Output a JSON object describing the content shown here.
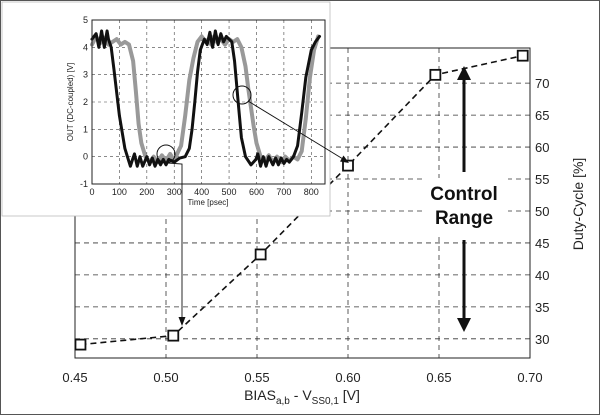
{
  "chart_data": [
    {
      "type": "line",
      "role": "main",
      "xlabel_main": "BIAS",
      "xlabel_sub1": "a,b",
      "xlabel_mid": " - V",
      "xlabel_sub2": "SS0,1",
      "xlabel_unit": " [V]",
      "ylabel": "Duty-Cycle [%]",
      "xlim": [
        0.45,
        0.7
      ],
      "ylim": [
        27,
        75.5
      ],
      "x_ticks": [
        "0.45",
        "0.50",
        "0.55",
        "0.60",
        "0.65",
        "0.70"
      ],
      "y_ticks": [
        "30",
        "35",
        "40",
        "45",
        "50",
        "55",
        "60",
        "65",
        "70"
      ],
      "grid": true,
      "series": [
        {
          "style": "dashed-square-markers",
          "x": [
            0.453,
            0.504,
            0.552,
            0.6,
            0.648,
            0.696
          ],
          "y": [
            29.1,
            30.5,
            43.2,
            57.1,
            71.3,
            74.3
          ]
        }
      ],
      "annotation": {
        "line1": "Control",
        "line2": "Range",
        "from_y": 71,
        "to_y": 30.7
      }
    },
    {
      "type": "line",
      "role": "inset",
      "xlabel": "Time [psec]",
      "ylabel": "OUT (DC-coupled) [V]",
      "xlim": [
        0,
        850
      ],
      "ylim": [
        -1,
        5
      ],
      "x_ticks": [
        "0",
        "100",
        "200",
        "300",
        "400",
        "500",
        "600",
        "700",
        "800"
      ],
      "y_ticks": [
        "-1",
        "0",
        "1",
        "2",
        "3",
        "4",
        "5"
      ],
      "grid": true,
      "series": [
        {
          "color": "#111111",
          "x": [
            0,
            15,
            25,
            35,
            45,
            55,
            60,
            70,
            80,
            100,
            120,
            140,
            148,
            155,
            165,
            175,
            185,
            200,
            210,
            220,
            230,
            240,
            250,
            260,
            270,
            280,
            300,
            320,
            340,
            355,
            365,
            375,
            385,
            395,
            410,
            420,
            430,
            440,
            450,
            460,
            470,
            480,
            490,
            500,
            510,
            520,
            535,
            545,
            560,
            580,
            598,
            605,
            615,
            625,
            635,
            645,
            660,
            670,
            680,
            690,
            700,
            710,
            720,
            735,
            750,
            765,
            780,
            800,
            815,
            830
          ],
          "y": [
            4.3,
            4.5,
            4.0,
            4.6,
            4.0,
            4.6,
            4.3,
            4.0,
            3.2,
            1.5,
            0.3,
            -0.35,
            -0.1,
            0.1,
            -0.35,
            0.0,
            -0.35,
            0.0,
            -0.3,
            -0.05,
            -0.35,
            -0.1,
            -0.3,
            -0.1,
            -0.3,
            -0.1,
            -0.2,
            -0.05,
            0.0,
            0.3,
            1.0,
            2.0,
            3.1,
            3.9,
            4.3,
            4.1,
            4.55,
            4.0,
            4.6,
            4.1,
            4.5,
            4.2,
            4.4,
            4.3,
            4.2,
            3.5,
            1.8,
            0.7,
            0.0,
            -0.3,
            -0.1,
            0.1,
            -0.35,
            0.0,
            -0.35,
            0.0,
            -0.3,
            -0.05,
            -0.3,
            -0.05,
            -0.25,
            -0.1,
            -0.2,
            0.0,
            0.4,
            1.6,
            2.9,
            3.9,
            4.2,
            4.4
          ]
        },
        {
          "color": "#999999",
          "x": [
            0,
            15,
            30,
            45,
            60,
            75,
            90,
            105,
            120,
            135,
            150,
            160,
            170,
            180,
            195,
            210,
            225,
            240,
            255,
            270,
            285,
            300,
            315,
            325,
            340,
            355,
            370,
            385,
            400,
            415,
            425,
            435,
            445,
            455,
            470,
            485,
            500,
            515,
            530,
            545,
            560,
            570,
            580,
            590,
            600,
            615,
            630,
            645,
            660,
            675,
            690,
            705,
            720,
            735,
            750,
            765,
            780,
            795,
            810,
            825
          ],
          "y": [
            4.1,
            4.4,
            4.15,
            4.35,
            4.1,
            4.2,
            4.3,
            4.1,
            4.2,
            4.1,
            3.5,
            2.4,
            1.2,
            0.5,
            0.0,
            -0.2,
            0.0,
            -0.2,
            0.05,
            -0.15,
            0.1,
            -0.15,
            0.2,
            0.4,
            1.5,
            2.8,
            3.6,
            4.2,
            4.4,
            4.2,
            4.3,
            4.1,
            4.4,
            4.2,
            4.3,
            4.1,
            4.3,
            4.2,
            4.3,
            4.0,
            3.3,
            2.5,
            1.8,
            1.1,
            0.5,
            0.0,
            -0.15,
            0.05,
            -0.2,
            0.0,
            -0.2,
            0.0,
            -0.15,
            0.0,
            -0.1,
            0.2,
            1.4,
            2.9,
            3.9,
            4.4
          ]
        }
      ]
    }
  ]
}
